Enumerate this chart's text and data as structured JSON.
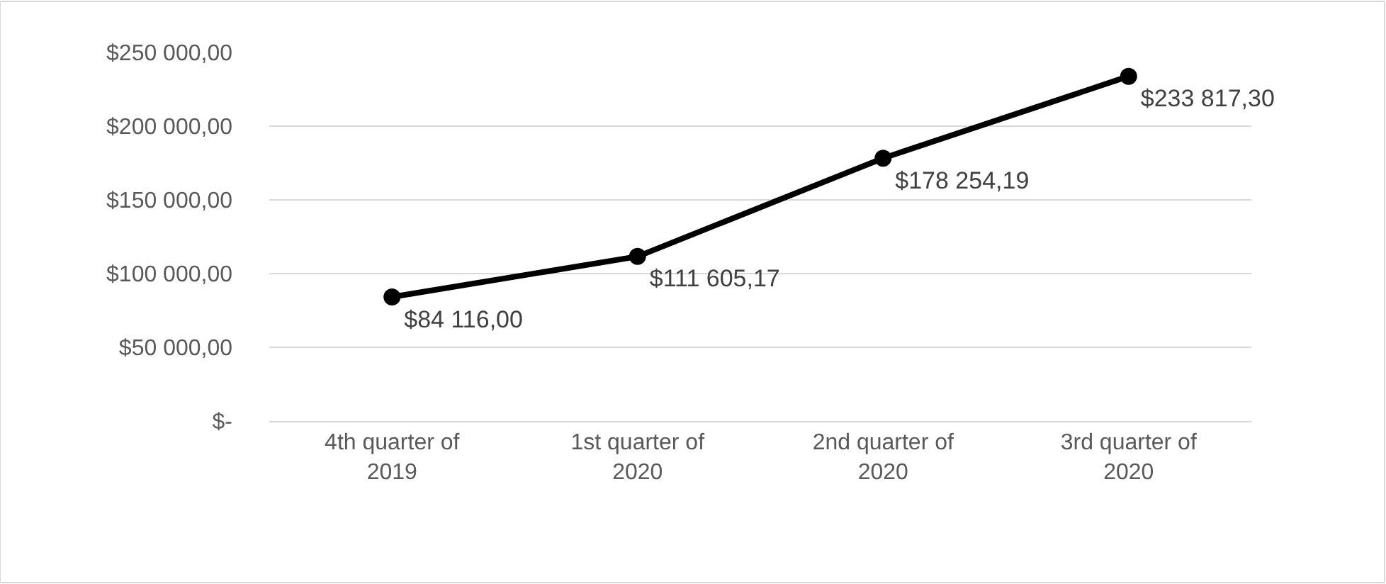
{
  "chart_data": {
    "type": "line",
    "categories": [
      "4th quarter of 2019",
      "1st quarter of 2020",
      "2nd quarter of 2020",
      "3rd quarter of 2020"
    ],
    "series": [
      {
        "color": "#000000",
        "values": [
          84116.0,
          111605.17,
          178254.19,
          233817.3
        ],
        "value_labels": [
          "$84 116,00",
          "$111 605,17",
          "$178 254,19",
          "$233 817,30"
        ]
      }
    ],
    "ylim": [
      0,
      250000
    ],
    "yticks": [
      {
        "value": 0,
        "label": "$-"
      },
      {
        "value": 50000,
        "label": "$50 000,00"
      },
      {
        "value": 100000,
        "label": "$100 000,00"
      },
      {
        "value": 150000,
        "label": "$150 000,00"
      },
      {
        "value": 200000,
        "label": "$200 000,00"
      },
      {
        "value": 250000,
        "label": "$250 000,00"
      }
    ],
    "grid": "y",
    "marker": "circle",
    "line_style": "solid"
  }
}
